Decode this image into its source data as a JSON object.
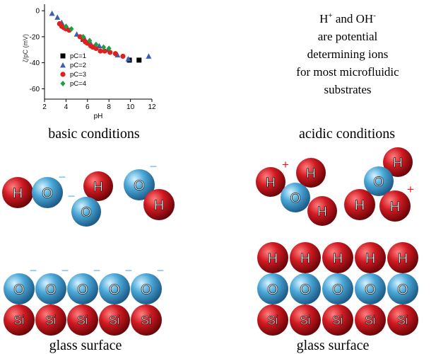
{
  "note": {
    "line1_h": "H",
    "line1_sup1": "+",
    "line1_and": " and OH",
    "line1_sup2": "-",
    "line2": "are potential",
    "line3": "determining ions",
    "line4": "for most microfluidic",
    "line5": "substrates"
  },
  "captions": {
    "basic": "basic conditions",
    "acidic": "acidic conditions",
    "surface_left": "glass surface",
    "surface_right": "glass surface"
  },
  "symbols": {
    "hydrogen": "H",
    "oxygen": "O",
    "silicon": "Si",
    "plus": "+",
    "minus": "−"
  },
  "colors": {
    "hydrogen": "#c0141c",
    "oxygen": "#3e9fcf",
    "silicon": "#c0141c",
    "negative_charge": "#6ab8e0",
    "positive_charge": "#e01818"
  },
  "chart_data": {
    "type": "scatter",
    "xlabel": "pH",
    "ylabel": "ζ/pC (mV)",
    "xlim": [
      2,
      12
    ],
    "ylim": [
      -68,
      5
    ],
    "xticks": [
      2,
      4,
      6,
      8,
      10,
      12
    ],
    "yticks": [
      0,
      -20,
      -40,
      -60
    ],
    "legend_position": "lower-left",
    "series": [
      {
        "name": "pC=1",
        "marker": "square",
        "color": "#000000",
        "points": [
          [
            5.6,
            -22
          ],
          [
            9.9,
            -38
          ],
          [
            10.8,
            -38
          ]
        ]
      },
      {
        "name": "pC=2",
        "marker": "triangle",
        "color": "#3a5fb0",
        "points": [
          [
            2.7,
            -2
          ],
          [
            3.2,
            -5
          ],
          [
            3.6,
            -9
          ],
          [
            4.1,
            -13
          ],
          [
            5.0,
            -18
          ],
          [
            5.7,
            -21
          ],
          [
            6.3,
            -25
          ],
          [
            7.1,
            -27
          ],
          [
            7.9,
            -30
          ],
          [
            8.8,
            -34
          ],
          [
            9.8,
            -37
          ],
          [
            11.7,
            -35
          ]
        ]
      },
      {
        "name": "pC=3",
        "marker": "circle",
        "color": "#e02020",
        "points": [
          [
            3.4,
            -10
          ],
          [
            3.6,
            -12
          ],
          [
            3.8,
            -13
          ],
          [
            4.0,
            -14
          ],
          [
            4.3,
            -15
          ],
          [
            5.3,
            -20
          ],
          [
            5.6,
            -22
          ],
          [
            5.8,
            -24
          ],
          [
            6.0,
            -25
          ],
          [
            6.3,
            -27
          ],
          [
            6.5,
            -28
          ],
          [
            6.8,
            -29
          ],
          [
            7.2,
            -31
          ],
          [
            7.6,
            -31
          ],
          [
            8.1,
            -32
          ],
          [
            8.6,
            -33
          ],
          [
            9.3,
            -35
          ]
        ]
      },
      {
        "name": "pC=4",
        "marker": "diamond",
        "color": "#1f9e3e",
        "points": [
          [
            4.0,
            -12
          ],
          [
            4.5,
            -14
          ],
          [
            5.6,
            -20
          ],
          [
            6.2,
            -23
          ],
          [
            6.8,
            -26
          ],
          [
            7.5,
            -28
          ],
          [
            8.0,
            -29
          ]
        ]
      }
    ]
  }
}
